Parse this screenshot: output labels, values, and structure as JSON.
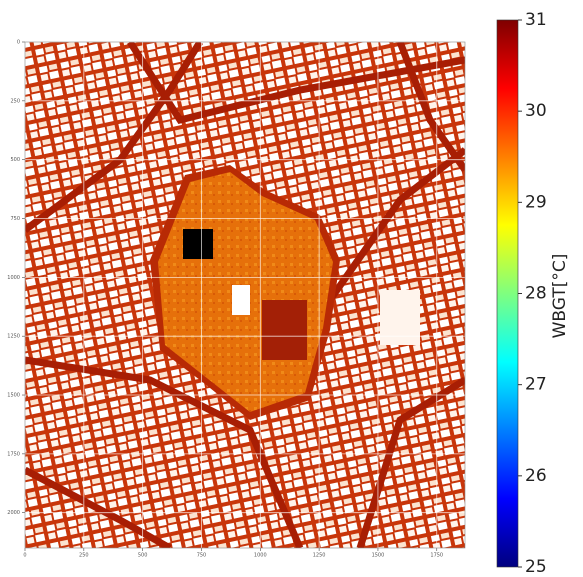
{
  "chart_data": {
    "type": "heatmap",
    "xlim": [
      0,
      1870
    ],
    "ylim": [
      2150,
      0
    ],
    "xticks": [
      0,
      250,
      500,
      750,
      1000,
      1250,
      1500,
      1750
    ],
    "yticks": [
      0,
      250,
      500,
      750,
      1000,
      1250,
      1500,
      1750,
      2000
    ],
    "grid": true,
    "colorbar": {
      "label": "WBGT[°C]",
      "lim": [
        25,
        31
      ],
      "ticks": [
        25,
        26,
        27,
        28,
        29,
        30,
        31
      ],
      "colormap": "jet"
    }
  }
}
